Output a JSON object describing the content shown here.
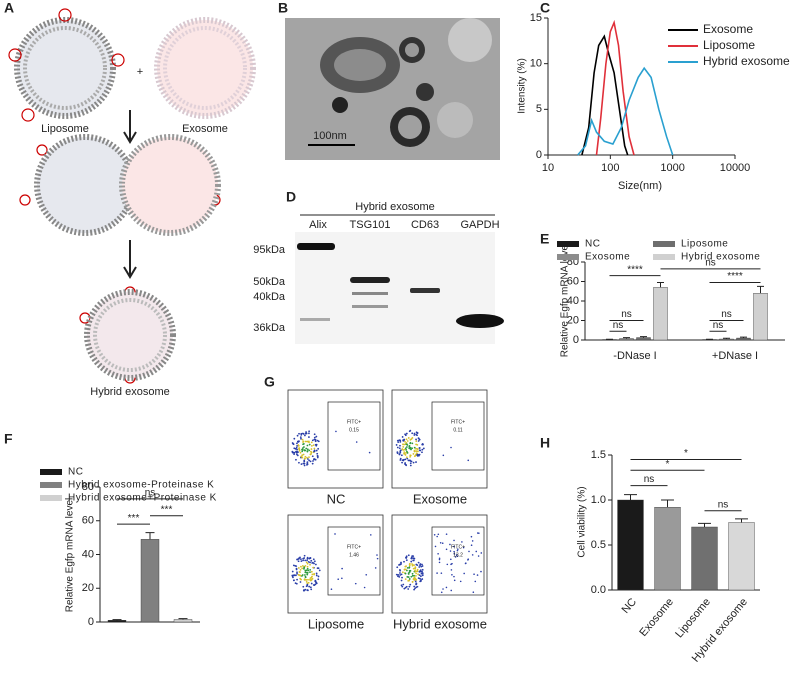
{
  "panels": {
    "A": {
      "label": "A",
      "plus": "+",
      "liposome": "Liposome",
      "exosome": "Exosome",
      "hybrid": "Hybrid exosome"
    },
    "B": {
      "label": "B",
      "scale_bar": "100nm"
    },
    "D": {
      "label": "D",
      "title": "Hybrid exosome",
      "lanes": [
        "Alix",
        "TSG101",
        "CD63",
        "GAPDH"
      ],
      "markers": [
        "95kDa",
        "50kDa",
        "40kDa",
        "36kDa"
      ]
    },
    "G": {
      "label": "G",
      "gate": "FITC+",
      "plots": [
        {
          "name": "NC",
          "percent": 0.15
        },
        {
          "name": "Exosome",
          "percent": 0.11
        },
        {
          "name": "Liposome",
          "percent": 1.46
        },
        {
          "name": "Hybrid exosome",
          "percent": 13.2
        }
      ]
    }
  },
  "chart_data": [
    {
      "type": "line",
      "label": "C",
      "xlabel": "Size(nm)",
      "ylabel": "Intensity (%)",
      "xscale": "log",
      "xlim": [
        10,
        10000
      ],
      "xticks": [
        10,
        100,
        1000,
        10000
      ],
      "ylim": [
        0,
        15
      ],
      "yticks": [
        0,
        5,
        10,
        15
      ],
      "legend": "upper right",
      "series": [
        {
          "name": "Exosome",
          "color": "#000000",
          "x": [
            35,
            45,
            55,
            65,
            80,
            95,
            115,
            140,
            170,
            190
          ],
          "values": [
            0,
            3,
            9,
            12,
            13,
            11,
            9,
            5,
            1,
            0
          ]
        },
        {
          "name": "Liposome",
          "color": "#e0303a",
          "x": [
            60,
            70,
            85,
            100,
            115,
            135,
            160,
            200,
            240
          ],
          "values": [
            0,
            4,
            10,
            13.5,
            14.5,
            12,
            7,
            2,
            0
          ]
        },
        {
          "name": "Hybrid exosome",
          "color": "#2aa0d0",
          "x": [
            30,
            40,
            50,
            60,
            80,
            110,
            150,
            200,
            280,
            350,
            450,
            600,
            800,
            1000
          ],
          "values": [
            0,
            1,
            3.8,
            2.5,
            1.5,
            1.2,
            3,
            6,
            8.5,
            9.5,
            8.5,
            5,
            2,
            0
          ]
        }
      ]
    },
    {
      "type": "bar",
      "label": "E",
      "ylabel": "Relative Egfp mRNA level",
      "categories": [
        "-DNase I",
        "+DNase I"
      ],
      "ylim": [
        0,
        80
      ],
      "yticks": [
        0,
        20,
        40,
        60,
        80
      ],
      "legend": "top",
      "series": [
        {
          "name": "NC",
          "color": "#1a1a1a",
          "values": [
            0.5,
            0.5
          ],
          "errors": [
            0.3,
            0.3
          ]
        },
        {
          "name": "Exosome",
          "color": "#8c8c8c",
          "values": [
            1.5,
            1
          ],
          "errors": [
            1,
            0.8
          ]
        },
        {
          "name": "Liposome",
          "color": "#6e6e6e",
          "values": [
            2.5,
            2
          ],
          "errors": [
            1,
            1
          ]
        },
        {
          "name": "Hybrid exosome",
          "color": "#d0d0d0",
          "values": [
            54,
            48
          ],
          "errors": [
            5,
            7
          ]
        }
      ],
      "annotations": [
        "ns",
        "****",
        "ns",
        "ns",
        "****",
        "ns",
        "ns"
      ]
    },
    {
      "type": "bar",
      "label": "F",
      "ylabel": "Relative Egfp mRNA level",
      "categories": [
        null
      ],
      "ylim": [
        0,
        80
      ],
      "yticks": [
        0,
        20,
        40,
        60,
        80
      ],
      "legend": "top",
      "series": [
        {
          "name": "NC",
          "color": "#1a1a1a",
          "values": [
            1
          ],
          "errors": [
            0.4
          ]
        },
        {
          "name": "Hybrid exosome-Proteinase K",
          "color": "#808080",
          "values": [
            49
          ],
          "errors": [
            4
          ]
        },
        {
          "name": "Hybrid exosome+Proteinase K",
          "color": "#d0d0d0",
          "values": [
            1.5
          ],
          "errors": [
            0.5
          ]
        }
      ],
      "annotations": [
        "ns",
        "***",
        "***"
      ]
    },
    {
      "type": "bar",
      "label": "H",
      "ylabel": "Cell viability (%)",
      "categories": [
        "NC",
        "Exosome",
        "Liposome",
        "Hybrid exosome"
      ],
      "values": [
        1.0,
        0.92,
        0.7,
        0.75
      ],
      "errors": [
        0.06,
        0.08,
        0.04,
        0.04
      ],
      "colors": [
        "#1a1a1a",
        "#9a9a9a",
        "#707070",
        "#d8d8d8"
      ],
      "ylim": [
        0,
        1.5
      ],
      "yticks": [
        {
          "value": 0,
          "label": "0.0"
        },
        0.5,
        {
          "value": 1,
          "label": "1.0"
        },
        1.5
      ],
      "annotations": [
        "*",
        "*",
        "ns",
        "ns"
      ]
    }
  ]
}
